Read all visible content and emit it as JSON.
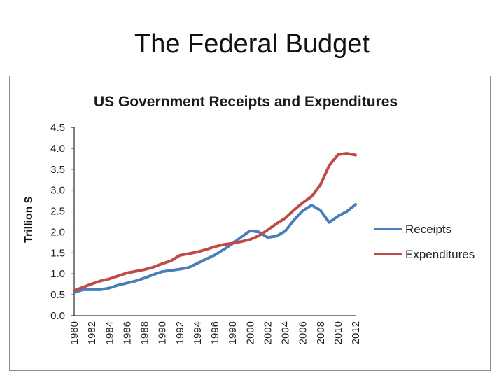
{
  "slide": {
    "title": "The Federal Budget"
  },
  "chart_data": {
    "type": "line",
    "title": "US Government Receipts and Expenditures",
    "xlabel": "",
    "ylabel": "Trillion $",
    "xlim": [
      1980,
      2012
    ],
    "ylim": [
      0,
      4.5
    ],
    "yticks": [
      "0.0",
      "0.5",
      "1.0",
      "1.5",
      "2.0",
      "2.5",
      "3.0",
      "3.5",
      "4.0",
      "4.5"
    ],
    "xticks": [
      "1980",
      "1982",
      "1984",
      "1986",
      "1988",
      "1990",
      "1992",
      "1994",
      "1996",
      "1998",
      "2000",
      "2002",
      "2004",
      "2006",
      "2008",
      "2010",
      "2012"
    ],
    "legend_position": "right",
    "grid": false,
    "x": [
      1980,
      1981,
      1982,
      1983,
      1984,
      1985,
      1986,
      1987,
      1988,
      1989,
      1990,
      1991,
      1992,
      1993,
      1994,
      1995,
      1996,
      1997,
      1998,
      1999,
      2000,
      2001,
      2002,
      2003,
      2004,
      2005,
      2006,
      2007,
      2008,
      2009,
      2010,
      2011,
      2012
    ],
    "series": [
      {
        "name": "Receipts",
        "color": "#4a7ebb",
        "values": [
          0.55,
          0.62,
          0.62,
          0.62,
          0.66,
          0.73,
          0.78,
          0.83,
          0.9,
          0.98,
          1.05,
          1.08,
          1.11,
          1.15,
          1.25,
          1.35,
          1.45,
          1.58,
          1.72,
          1.88,
          2.03,
          2.0,
          1.87,
          1.9,
          2.02,
          2.29,
          2.51,
          2.64,
          2.52,
          2.23,
          2.38,
          2.49,
          2.66
        ]
      },
      {
        "name": "Expenditures",
        "color": "#be4b48",
        "values": [
          0.6,
          0.68,
          0.76,
          0.83,
          0.88,
          0.95,
          1.02,
          1.06,
          1.1,
          1.16,
          1.24,
          1.31,
          1.44,
          1.48,
          1.52,
          1.58,
          1.65,
          1.7,
          1.73,
          1.77,
          1.82,
          1.91,
          2.05,
          2.2,
          2.33,
          2.53,
          2.7,
          2.85,
          3.13,
          3.59,
          3.85,
          3.88,
          3.84
        ]
      }
    ]
  }
}
